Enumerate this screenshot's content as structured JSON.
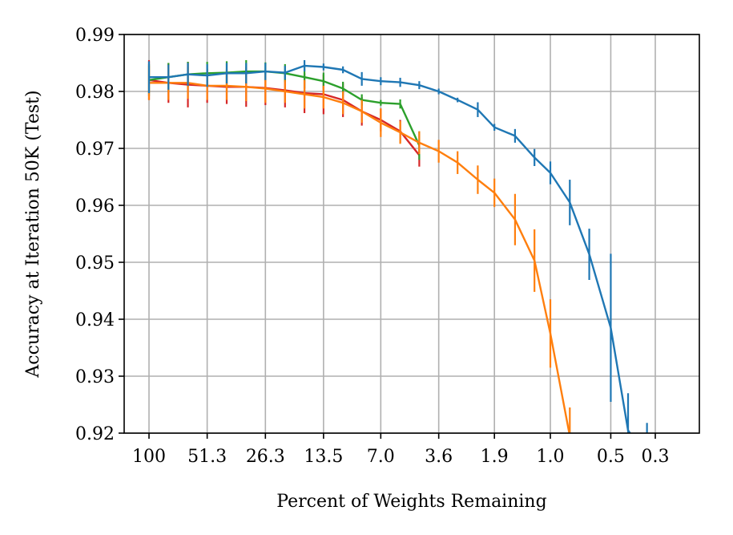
{
  "chart_data": {
    "type": "line",
    "xlabel": "Percent of Weights Remaining",
    "ylabel": "Accuracy at Iteration 50K (Test)",
    "x_scale": "log-reversed",
    "xlim": [
      100,
      0.18
    ],
    "ylim": [
      0.92,
      0.99
    ],
    "grid": true,
    "x_ticks": [
      100,
      51.3,
      26.3,
      13.5,
      7.0,
      3.6,
      1.9,
      1.0,
      0.5,
      0.3
    ],
    "x_tick_labels": [
      "100",
      "51.3",
      "26.3",
      "13.5",
      "7.0",
      "3.6",
      "1.9",
      "1.0",
      "0.5",
      "0.3"
    ],
    "y_ticks": [
      0.92,
      0.93,
      0.94,
      0.95,
      0.96,
      0.97,
      0.98,
      0.99
    ],
    "y_tick_labels": [
      "0.92",
      "0.93",
      "0.94",
      "0.95",
      "0.96",
      "0.97",
      "0.98",
      "0.99"
    ],
    "series": [
      {
        "color": "#1f77b4",
        "x": [
          100,
          80,
          64,
          51.3,
          41,
          32.8,
          26.3,
          21,
          16.8,
          13.5,
          10.8,
          8.7,
          7.0,
          5.6,
          4.5,
          3.6,
          2.9,
          2.3,
          1.9,
          1.5,
          1.2,
          1.0,
          0.8,
          0.64,
          0.5,
          0.41,
          0.33
        ],
        "values": [
          0.9825,
          0.9825,
          0.983,
          0.9828,
          0.9832,
          0.9832,
          0.9835,
          0.9833,
          0.9845,
          0.9843,
          0.9838,
          0.9822,
          0.9818,
          0.9816,
          0.9811,
          0.98,
          0.9785,
          0.9768,
          0.9737,
          0.9722,
          0.9684,
          0.9657,
          0.9605,
          0.9514,
          0.9385,
          0.9205,
          0.9158
        ],
        "errors": [
          0.0028,
          0.0022,
          0.002,
          0.002,
          0.0018,
          0.0018,
          0.0015,
          0.0012,
          0.001,
          0.0006,
          0.0006,
          0.0012,
          0.0007,
          0.0008,
          0.0007,
          0.0005,
          0.0004,
          0.0013,
          0.0006,
          0.0012,
          0.0015,
          0.002,
          0.004,
          0.0045,
          0.013,
          0.0065,
          0.006
        ]
      },
      {
        "color": "#ff7f0e",
        "x": [
          100,
          80,
          64,
          51.3,
          41,
          32.8,
          26.3,
          21,
          16.8,
          13.5,
          10.8,
          8.7,
          7.0,
          5.6,
          4.5,
          3.6,
          2.9,
          2.3,
          1.9,
          1.5,
          1.2,
          1.0,
          0.8
        ],
        "values": [
          0.9815,
          0.9815,
          0.9815,
          0.981,
          0.981,
          0.9808,
          0.9805,
          0.98,
          0.9795,
          0.979,
          0.978,
          0.9765,
          0.9745,
          0.9728,
          0.971,
          0.9695,
          0.9675,
          0.9645,
          0.9622,
          0.9575,
          0.9503,
          0.9375,
          0.9195
        ],
        "errors": [
          0.003,
          0.003,
          0.0028,
          0.0025,
          0.0025,
          0.0025,
          0.0025,
          0.002,
          0.0025,
          0.002,
          0.002,
          0.002,
          0.0025,
          0.002,
          0.002,
          0.002,
          0.002,
          0.0025,
          0.0025,
          0.0045,
          0.0055,
          0.006,
          0.005
        ]
      },
      {
        "color": "#2ca02c",
        "x": [
          100,
          80,
          64,
          51.3,
          41,
          32.8,
          26.3,
          21,
          16.8,
          13.5,
          10.8,
          8.7,
          7.0,
          5.6,
          4.5
        ],
        "values": [
          0.982,
          0.9825,
          0.983,
          0.9832,
          0.9833,
          0.9835,
          0.9835,
          0.9832,
          0.9825,
          0.9818,
          0.9805,
          0.9785,
          0.978,
          0.9778,
          0.9705
        ],
        "errors": [
          0.0028,
          0.0025,
          0.0022,
          0.002,
          0.002,
          0.002,
          0.0016,
          0.0016,
          0.002,
          0.0015,
          0.0012,
          0.001,
          0.0005,
          0.0008,
          0.0025
        ]
      },
      {
        "color": "#d62728",
        "x": [
          100,
          80,
          64,
          51.3,
          41,
          32.8,
          26.3,
          21,
          16.8,
          13.5,
          10.8,
          8.7,
          7.0,
          5.6,
          4.5
        ],
        "values": [
          0.982,
          0.9815,
          0.9812,
          0.981,
          0.9808,
          0.9808,
          0.9806,
          0.9802,
          0.9797,
          0.9795,
          0.9785,
          0.9765,
          0.975,
          0.973,
          0.9688
        ],
        "errors": [
          0.0035,
          0.0035,
          0.004,
          0.003,
          0.003,
          0.0035,
          0.003,
          0.003,
          0.0035,
          0.0035,
          0.003,
          0.0025,
          0.002,
          0.002,
          0.002
        ]
      }
    ]
  }
}
